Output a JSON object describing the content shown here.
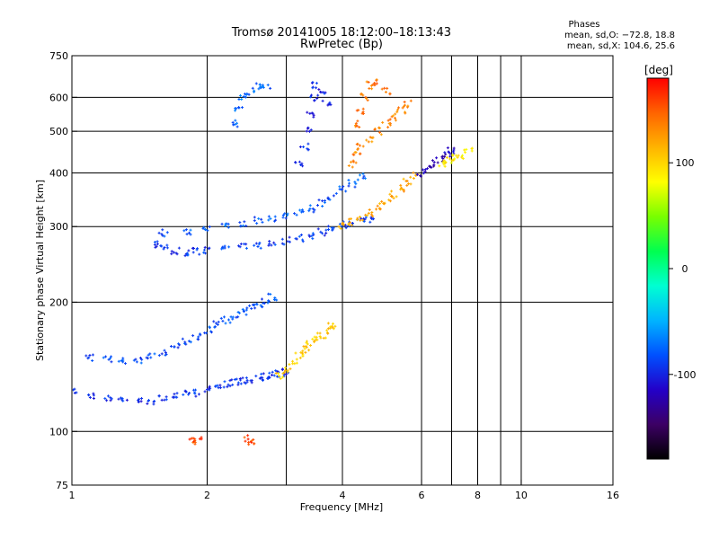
{
  "chart_data": {
    "type": "scatter",
    "title": "Tromsø 20141005 18:12:00–18:13:43",
    "subtitle": "RwPretec (Bp)",
    "xlabel": "Frequency [MHz]",
    "ylabel": "Stationary phase Virtual Height [km]",
    "xscale": "log",
    "yscale": "log",
    "xlim": [
      1,
      16
    ],
    "ylim": [
      75,
      750
    ],
    "xticks": [
      1,
      2,
      4,
      6,
      8,
      10,
      16
    ],
    "yticks": [
      75,
      100,
      200,
      300,
      400,
      500,
      600,
      750
    ],
    "x_grid": [
      2,
      3,
      4,
      6,
      7,
      8,
      9,
      10
    ],
    "y_grid": [
      100,
      200,
      300,
      400,
      500,
      600
    ],
    "grid": true,
    "phase_stats": {
      "heading": "Phases",
      "line_o": "mean, sd,O: −72.8, 18.8",
      "line_x": "mean, sd,X: 104.6, 25.6"
    },
    "colorbar": {
      "label": "[deg]",
      "min": -180,
      "max": 180,
      "ticks": [
        100,
        0,
        -100
      ],
      "colors": [
        "#000000",
        "#3c0064",
        "#2300c8",
        "#0050ff",
        "#00b4ff",
        "#00ffd2",
        "#00ff50",
        "#78ff00",
        "#ffff00",
        "#ffb400",
        "#ff6400",
        "#ff0000"
      ]
    },
    "traces": [
      {
        "name": "o-trace-lower",
        "phase": -95,
        "points": [
          [
            1.0,
            124
          ],
          [
            1.1,
            121
          ],
          [
            1.2,
            119
          ],
          [
            1.3,
            118
          ],
          [
            1.4,
            118
          ],
          [
            1.5,
            118
          ],
          [
            1.6,
            120
          ],
          [
            1.7,
            121
          ],
          [
            1.8,
            122
          ],
          [
            1.9,
            123
          ],
          [
            2.0,
            125
          ],
          [
            2.1,
            127
          ],
          [
            2.2,
            129
          ],
          [
            2.3,
            130
          ],
          [
            2.4,
            131
          ],
          [
            2.5,
            132
          ],
          [
            2.6,
            133
          ],
          [
            2.7,
            134
          ],
          [
            2.8,
            135
          ],
          [
            2.9,
            136
          ],
          [
            3.0,
            138
          ]
        ]
      },
      {
        "name": "o-trace-band",
        "phase": -85,
        "points": [
          [
            1.1,
            148
          ],
          [
            1.2,
            147
          ],
          [
            1.3,
            146
          ],
          [
            1.4,
            147
          ],
          [
            1.5,
            150
          ],
          [
            1.6,
            153
          ],
          [
            1.7,
            157
          ],
          [
            1.8,
            162
          ],
          [
            1.9,
            166
          ],
          [
            2.0,
            172
          ],
          [
            2.1,
            178
          ],
          [
            2.2,
            182
          ],
          [
            2.3,
            186
          ],
          [
            2.4,
            190
          ],
          [
            2.5,
            194
          ],
          [
            2.6,
            197
          ],
          [
            2.7,
            200
          ],
          [
            2.8,
            205
          ]
        ]
      },
      {
        "name": "f-trace-main",
        "phase": -90,
        "points": [
          [
            1.55,
            272
          ],
          [
            1.6,
            268
          ],
          [
            1.7,
            263
          ],
          [
            1.8,
            260
          ],
          [
            1.9,
            262
          ],
          [
            2.0,
            264
          ],
          [
            2.2,
            268
          ],
          [
            2.4,
            270
          ],
          [
            2.6,
            272
          ],
          [
            2.8,
            274
          ],
          [
            3.0,
            278
          ],
          [
            3.2,
            282
          ],
          [
            3.4,
            286
          ],
          [
            3.6,
            291
          ],
          [
            3.8,
            297
          ],
          [
            4.0,
            302
          ],
          [
            4.2,
            306
          ],
          [
            4.4,
            310
          ],
          [
            4.6,
            312
          ]
        ]
      },
      {
        "name": "f-trace-upper",
        "phase": -80,
        "points": [
          [
            1.6,
            290
          ],
          [
            1.8,
            292
          ],
          [
            2.0,
            298
          ],
          [
            2.2,
            303
          ],
          [
            2.4,
            306
          ],
          [
            2.6,
            310
          ],
          [
            2.8,
            312
          ],
          [
            3.0,
            316
          ],
          [
            3.2,
            322
          ],
          [
            3.4,
            330
          ],
          [
            3.6,
            340
          ],
          [
            3.8,
            352
          ],
          [
            4.0,
            365
          ],
          [
            4.2,
            378
          ],
          [
            4.4,
            392
          ]
        ]
      },
      {
        "name": "x-trace-main",
        "phase": 120,
        "points": [
          [
            4.0,
            302
          ],
          [
            4.2,
            308
          ],
          [
            4.4,
            315
          ],
          [
            4.6,
            322
          ],
          [
            4.8,
            333
          ],
          [
            5.0,
            345
          ],
          [
            5.2,
            356
          ],
          [
            5.4,
            368
          ],
          [
            5.6,
            380
          ],
          [
            5.8,
            395
          ]
        ]
      },
      {
        "name": "x-trace-upper",
        "phase": 135,
        "points": [
          [
            4.2,
            420
          ],
          [
            4.3,
            440
          ],
          [
            4.4,
            460
          ],
          [
            4.6,
            480
          ],
          [
            4.8,
            500
          ],
          [
            5.0,
            520
          ],
          [
            5.2,
            540
          ],
          [
            5.4,
            560
          ],
          [
            5.6,
            580
          ]
        ]
      },
      {
        "name": "x-trace-e",
        "phase": 105,
        "points": [
          [
            2.9,
            134
          ],
          [
            3.0,
            140
          ],
          [
            3.1,
            145
          ],
          [
            3.2,
            150
          ],
          [
            3.3,
            155
          ],
          [
            3.4,
            160
          ],
          [
            3.5,
            164
          ],
          [
            3.6,
            168
          ],
          [
            3.7,
            172
          ],
          [
            3.8,
            176
          ]
        ]
      },
      {
        "name": "vert-blue-3",
        "phase": -100,
        "points": [
          [
            3.2,
            420
          ],
          [
            3.3,
            460
          ],
          [
            3.35,
            500
          ],
          [
            3.4,
            550
          ],
          [
            3.45,
            600
          ],
          [
            3.5,
            640
          ],
          [
            3.6,
            620
          ],
          [
            3.7,
            580
          ]
        ]
      },
      {
        "name": "vert-blue-2",
        "phase": -75,
        "points": [
          [
            2.3,
            520
          ],
          [
            2.35,
            560
          ],
          [
            2.4,
            600
          ],
          [
            2.5,
            620
          ],
          [
            2.6,
            640
          ],
          [
            2.7,
            630
          ]
        ]
      },
      {
        "name": "vert-orange-4",
        "phase": 140,
        "points": [
          [
            4.3,
            520
          ],
          [
            4.4,
            560
          ],
          [
            4.5,
            600
          ],
          [
            4.6,
            640
          ],
          [
            4.8,
            650
          ],
          [
            5.0,
            620
          ]
        ]
      },
      {
        "name": "cluster-6-7",
        "phase": -120,
        "points": [
          [
            6.0,
            400
          ],
          [
            6.2,
            410
          ],
          [
            6.4,
            420
          ],
          [
            6.6,
            430
          ],
          [
            6.8,
            440
          ],
          [
            7.0,
            450
          ]
        ]
      },
      {
        "name": "cluster-7-yellow",
        "phase": 90,
        "points": [
          [
            6.7,
            420
          ],
          [
            6.9,
            430
          ],
          [
            7.1,
            435
          ],
          [
            7.3,
            440
          ],
          [
            7.6,
            450
          ]
        ]
      },
      {
        "name": "low-red",
        "phase": 155,
        "points": [
          [
            1.85,
            95
          ],
          [
            1.9,
            96
          ],
          [
            2.45,
            96
          ],
          [
            2.5,
            95
          ]
        ]
      }
    ]
  }
}
